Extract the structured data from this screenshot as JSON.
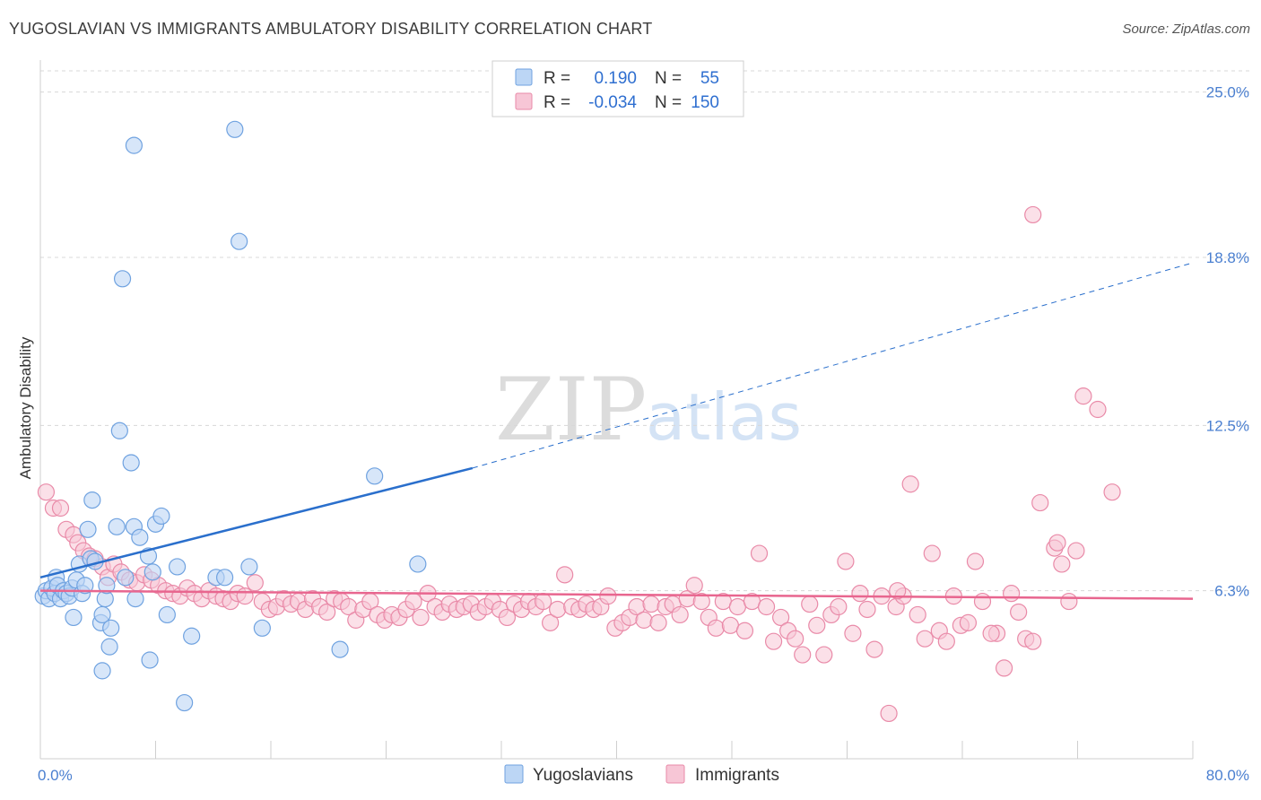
{
  "header": {
    "title": "YUGOSLAVIAN VS IMMIGRANTS AMBULATORY DISABILITY CORRELATION CHART",
    "source": "Source: ZipAtlas.com"
  },
  "watermark": {
    "zip": "ZIP",
    "atlas": "atlas"
  },
  "colors": {
    "blue": "#6fa2e0",
    "blue_fill": "#bcd6f5",
    "blue_line": "#2a6fcc",
    "pink": "#e98aa8",
    "pink_fill": "#f7c6d6",
    "pink_line": "#e8668f",
    "grid": "#d8d8d8",
    "axis_text": "#4a7fd0"
  },
  "legend": {
    "rows": [
      {
        "r_label": "R =",
        "r_value": "0.190",
        "n_label": "N =",
        "n_value": "55"
      },
      {
        "r_label": "R =",
        "r_value": "-0.034",
        "n_label": "N =",
        "n_value": "150"
      }
    ]
  },
  "chart_data": {
    "type": "scatter",
    "title": "YUGOSLAVIAN VS IMMIGRANTS AMBULATORY DISABILITY CORRELATION CHART",
    "xlabel": "",
    "ylabel": "Ambulatory Disability",
    "xlim": [
      0,
      80
    ],
    "ylim": [
      0,
      26.2
    ],
    "x_tick_labels": [
      "0.0%",
      "80.0%"
    ],
    "y_ticks": [
      6.3,
      12.5,
      18.8,
      25.0
    ],
    "y_tick_labels": [
      "6.3%",
      "12.5%",
      "18.8%",
      "25.0%"
    ],
    "grid": true,
    "legend_position": "bottom-center",
    "series": [
      {
        "name": "Yugoslavians",
        "r": 0.19,
        "n": 55,
        "trend": {
          "x_start": 0,
          "y_start": 6.8,
          "x_solid_end": 30,
          "y_solid_end": 10.9,
          "x_end": 80,
          "y_end": 18.6
        },
        "points": [
          [
            0.2,
            6.1
          ],
          [
            0.4,
            6.3
          ],
          [
            0.6,
            6.0
          ],
          [
            0.8,
            6.4
          ],
          [
            1.0,
            6.2
          ],
          [
            1.1,
            6.8
          ],
          [
            1.2,
            6.5
          ],
          [
            1.4,
            6.0
          ],
          [
            1.6,
            6.3
          ],
          [
            1.8,
            6.2
          ],
          [
            2.0,
            6.1
          ],
          [
            2.2,
            6.4
          ],
          [
            2.3,
            5.3
          ],
          [
            2.5,
            6.7
          ],
          [
            2.7,
            7.3
          ],
          [
            2.9,
            6.2
          ],
          [
            3.1,
            6.5
          ],
          [
            3.3,
            8.6
          ],
          [
            3.5,
            7.5
          ],
          [
            3.6,
            9.7
          ],
          [
            3.8,
            7.4
          ],
          [
            4.2,
            5.1
          ],
          [
            4.3,
            5.4
          ],
          [
            4.5,
            6.0
          ],
          [
            4.6,
            6.5
          ],
          [
            4.8,
            4.2
          ],
          [
            4.9,
            4.9
          ],
          [
            5.3,
            8.7
          ],
          [
            5.5,
            12.3
          ],
          [
            5.7,
            18.0
          ],
          [
            5.9,
            6.8
          ],
          [
            6.3,
            11.1
          ],
          [
            6.6,
            6.0
          ],
          [
            6.5,
            8.7
          ],
          [
            6.9,
            8.3
          ],
          [
            7.5,
            7.6
          ],
          [
            7.8,
            7.0
          ],
          [
            8.0,
            8.8
          ],
          [
            8.4,
            9.1
          ],
          [
            8.8,
            5.4
          ],
          [
            9.5,
            7.2
          ],
          [
            10.5,
            4.6
          ],
          [
            10.0,
            2.1
          ],
          [
            7.6,
            3.7
          ],
          [
            4.3,
            3.3
          ],
          [
            12.2,
            6.8
          ],
          [
            12.8,
            6.8
          ],
          [
            13.5,
            23.6
          ],
          [
            13.8,
            19.4
          ],
          [
            14.5,
            7.2
          ],
          [
            15.4,
            4.9
          ],
          [
            20.8,
            4.1
          ],
          [
            23.2,
            10.6
          ],
          [
            26.2,
            7.3
          ],
          [
            6.5,
            23.0
          ]
        ]
      },
      {
        "name": "Immigrants",
        "r": -0.034,
        "n": 150,
        "trend": {
          "x_start": 0,
          "y_start": 6.3,
          "x_end": 80,
          "y_end": 6.0
        },
        "points": [
          [
            0.4,
            10.0
          ],
          [
            0.9,
            9.4
          ],
          [
            1.4,
            9.4
          ],
          [
            1.8,
            8.6
          ],
          [
            2.3,
            8.4
          ],
          [
            2.6,
            8.1
          ],
          [
            3.0,
            7.8
          ],
          [
            3.4,
            7.6
          ],
          [
            3.8,
            7.5
          ],
          [
            4.3,
            7.2
          ],
          [
            4.7,
            6.8
          ],
          [
            5.1,
            7.3
          ],
          [
            5.6,
            7.0
          ],
          [
            6.2,
            6.7
          ],
          [
            6.7,
            6.6
          ],
          [
            7.2,
            6.9
          ],
          [
            7.7,
            6.7
          ],
          [
            8.2,
            6.5
          ],
          [
            8.7,
            6.3
          ],
          [
            9.2,
            6.2
          ],
          [
            9.7,
            6.1
          ],
          [
            10.2,
            6.4
          ],
          [
            10.7,
            6.2
          ],
          [
            11.2,
            6.0
          ],
          [
            11.7,
            6.3
          ],
          [
            12.2,
            6.1
          ],
          [
            12.7,
            6.0
          ],
          [
            13.2,
            5.9
          ],
          [
            13.7,
            6.2
          ],
          [
            14.2,
            6.1
          ],
          [
            14.9,
            6.6
          ],
          [
            15.4,
            5.9
          ],
          [
            15.9,
            5.6
          ],
          [
            16.4,
            5.7
          ],
          [
            16.9,
            6.0
          ],
          [
            17.4,
            5.8
          ],
          [
            17.9,
            5.9
          ],
          [
            18.4,
            5.6
          ],
          [
            18.9,
            6.0
          ],
          [
            19.4,
            5.7
          ],
          [
            19.9,
            5.5
          ],
          [
            20.4,
            6.0
          ],
          [
            20.9,
            5.9
          ],
          [
            21.4,
            5.7
          ],
          [
            21.9,
            5.2
          ],
          [
            22.4,
            5.6
          ],
          [
            22.9,
            5.9
          ],
          [
            23.4,
            5.4
          ],
          [
            23.9,
            5.2
          ],
          [
            24.4,
            5.4
          ],
          [
            24.9,
            5.3
          ],
          [
            25.4,
            5.6
          ],
          [
            25.9,
            5.9
          ],
          [
            26.4,
            5.3
          ],
          [
            26.9,
            6.2
          ],
          [
            27.4,
            5.7
          ],
          [
            27.9,
            5.5
          ],
          [
            28.4,
            5.8
          ],
          [
            28.9,
            5.6
          ],
          [
            29.4,
            5.7
          ],
          [
            29.9,
            5.8
          ],
          [
            30.4,
            5.5
          ],
          [
            30.9,
            5.7
          ],
          [
            31.4,
            5.9
          ],
          [
            31.9,
            5.6
          ],
          [
            32.4,
            5.3
          ],
          [
            32.9,
            5.8
          ],
          [
            33.4,
            5.6
          ],
          [
            33.9,
            5.9
          ],
          [
            34.4,
            5.7
          ],
          [
            34.9,
            5.9
          ],
          [
            35.4,
            5.1
          ],
          [
            35.9,
            5.6
          ],
          [
            36.4,
            6.9
          ],
          [
            36.9,
            5.7
          ],
          [
            37.4,
            5.6
          ],
          [
            37.9,
            5.8
          ],
          [
            38.4,
            5.6
          ],
          [
            38.9,
            5.7
          ],
          [
            39.4,
            6.1
          ],
          [
            39.9,
            4.9
          ],
          [
            40.4,
            5.1
          ],
          [
            40.9,
            5.3
          ],
          [
            41.4,
            5.7
          ],
          [
            41.9,
            5.2
          ],
          [
            42.4,
            5.8
          ],
          [
            42.9,
            5.1
          ],
          [
            43.4,
            5.7
          ],
          [
            43.9,
            5.8
          ],
          [
            44.4,
            5.4
          ],
          [
            44.9,
            6.0
          ],
          [
            45.4,
            6.5
          ],
          [
            45.9,
            5.9
          ],
          [
            46.4,
            5.3
          ],
          [
            46.9,
            4.9
          ],
          [
            47.4,
            5.9
          ],
          [
            47.9,
            5.0
          ],
          [
            48.4,
            5.7
          ],
          [
            48.9,
            4.8
          ],
          [
            49.4,
            5.9
          ],
          [
            49.9,
            7.7
          ],
          [
            50.4,
            5.7
          ],
          [
            50.9,
            4.4
          ],
          [
            51.4,
            5.3
          ],
          [
            51.9,
            4.8
          ],
          [
            52.4,
            4.5
          ],
          [
            52.9,
            3.9
          ],
          [
            53.4,
            5.8
          ],
          [
            53.9,
            5.0
          ],
          [
            54.4,
            3.9
          ],
          [
            54.9,
            5.4
          ],
          [
            55.4,
            5.7
          ],
          [
            55.9,
            7.4
          ],
          [
            56.4,
            4.7
          ],
          [
            56.9,
            6.2
          ],
          [
            57.4,
            5.6
          ],
          [
            57.9,
            4.1
          ],
          [
            58.4,
            6.1
          ],
          [
            58.9,
            1.7
          ],
          [
            59.4,
            5.7
          ],
          [
            59.9,
            6.1
          ],
          [
            60.4,
            10.3
          ],
          [
            60.9,
            5.4
          ],
          [
            61.4,
            4.5
          ],
          [
            61.9,
            7.7
          ],
          [
            62.4,
            4.8
          ],
          [
            62.9,
            4.4
          ],
          [
            63.4,
            6.1
          ],
          [
            63.9,
            5.0
          ],
          [
            64.4,
            5.1
          ],
          [
            64.9,
            7.4
          ],
          [
            65.4,
            5.9
          ],
          [
            66.4,
            4.7
          ],
          [
            66.9,
            3.4
          ],
          [
            67.4,
            6.2
          ],
          [
            67.9,
            5.5
          ],
          [
            68.4,
            4.5
          ],
          [
            68.9,
            4.4
          ],
          [
            69.4,
            9.6
          ],
          [
            70.4,
            7.9
          ],
          [
            70.9,
            7.3
          ],
          [
            71.4,
            5.9
          ],
          [
            71.9,
            7.8
          ],
          [
            72.4,
            13.6
          ],
          [
            73.4,
            13.1
          ],
          [
            74.4,
            10.0
          ],
          [
            68.9,
            20.4
          ],
          [
            70.6,
            8.1
          ],
          [
            59.5,
            6.3
          ],
          [
            66.0,
            4.7
          ]
        ]
      }
    ]
  }
}
